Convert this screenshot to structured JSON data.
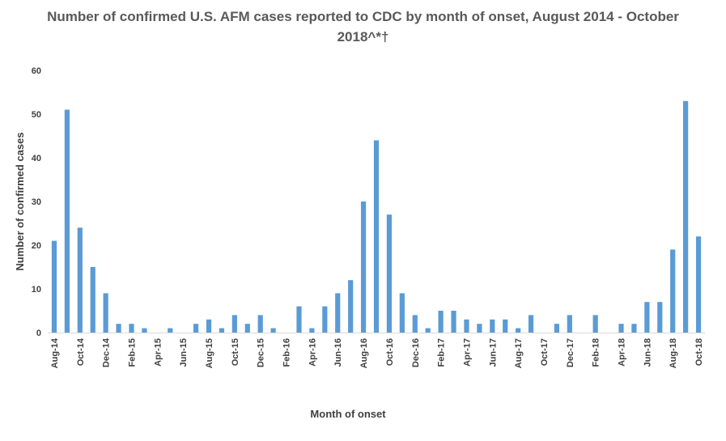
{
  "chart_data": {
    "type": "bar",
    "title": "Number of confirmed U.S. AFM cases reported to CDC by month of onset, August 2014 - October 2018^*†",
    "xlabel": "Month of onset",
    "ylabel": "Number of confirmed cases",
    "ylim": [
      0,
      60
    ],
    "yticks": [
      0,
      10,
      20,
      30,
      40,
      50,
      60
    ],
    "grid": false,
    "legend": "none",
    "bar_color": "#5B9BD5",
    "categories": [
      "Aug-14",
      "Sep-14",
      "Oct-14",
      "Nov-14",
      "Dec-14",
      "Jan-15",
      "Feb-15",
      "Mar-15",
      "Apr-15",
      "May-15",
      "Jun-15",
      "Jul-15",
      "Aug-15",
      "Sep-15",
      "Oct-15",
      "Nov-15",
      "Dec-15",
      "Jan-16",
      "Feb-16",
      "Mar-16",
      "Apr-16",
      "May-16",
      "Jun-16",
      "Jul-16",
      "Aug-16",
      "Sep-16",
      "Oct-16",
      "Nov-16",
      "Dec-16",
      "Jan-17",
      "Feb-17",
      "Mar-17",
      "Apr-17",
      "May-17",
      "Jun-17",
      "Jul-17",
      "Aug-17",
      "Sep-17",
      "Oct-17",
      "Nov-17",
      "Dec-17",
      "Jan-18",
      "Feb-18",
      "Mar-18",
      "Apr-18",
      "May-18",
      "Jun-18",
      "Jul-18",
      "Aug-18",
      "Sep-18",
      "Oct-18"
    ],
    "tick_labels": [
      "Aug-14",
      "Oct-14",
      "Dec-14",
      "Feb-15",
      "Apr-15",
      "Jun-15",
      "Aug-15",
      "Oct-15",
      "Dec-15",
      "Feb-16",
      "Apr-16",
      "Jun-16",
      "Aug-16",
      "Oct-16",
      "Dec-16",
      "Feb-17",
      "Apr-17",
      "Jun-17",
      "Aug-17",
      "Oct-17",
      "Dec-17",
      "Feb-18",
      "Apr-18",
      "Jun-18",
      "Aug-18",
      "Oct-18"
    ],
    "values": [
      21,
      51,
      24,
      15,
      9,
      2,
      2,
      1,
      0,
      1,
      0,
      2,
      3,
      1,
      4,
      2,
      4,
      1,
      0,
      6,
      1,
      6,
      9,
      12,
      30,
      44,
      27,
      9,
      4,
      1,
      5,
      5,
      3,
      2,
      3,
      3,
      1,
      4,
      0,
      2,
      4,
      0,
      4,
      0,
      2,
      2,
      7,
      7,
      19,
      53,
      22
    ]
  }
}
